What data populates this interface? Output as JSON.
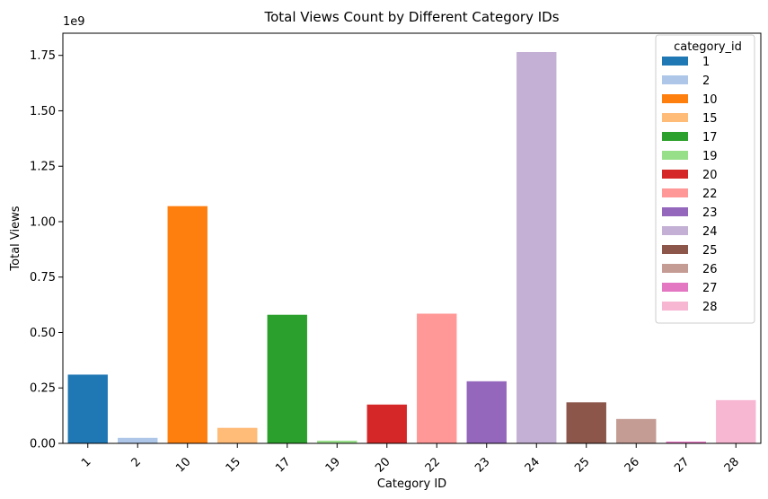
{
  "chart_data": {
    "type": "bar",
    "title": "Total Views Count by Different Category IDs",
    "xlabel": "Category ID",
    "ylabel": "Total Views",
    "y_offset_label": "1e9",
    "ylim": [
      0,
      1.85
    ],
    "yticks": [
      0.0,
      0.25,
      0.5,
      0.75,
      1.0,
      1.25,
      1.5,
      1.75
    ],
    "ytick_labels": [
      "0.00",
      "0.25",
      "0.50",
      "0.75",
      "1.00",
      "1.25",
      "1.50",
      "1.75"
    ],
    "categories": [
      "1",
      "2",
      "10",
      "15",
      "17",
      "19",
      "20",
      "22",
      "23",
      "24",
      "25",
      "26",
      "27",
      "28"
    ],
    "values": [
      0.31,
      0.025,
      1.07,
      0.07,
      0.58,
      0.012,
      0.175,
      0.585,
      0.28,
      1.765,
      0.185,
      0.11,
      0.008,
      0.195
    ],
    "colors": [
      "#1f77b4",
      "#aec7e8",
      "#ff7f0e",
      "#ffbb78",
      "#2ca02c",
      "#98df8a",
      "#d62728",
      "#ff9896",
      "#9467bd",
      "#c5b0d5",
      "#8c564b",
      "#c49c94",
      "#e377c2",
      "#f7b6d2"
    ],
    "grid": false,
    "legend": {
      "title": "category_id",
      "placement": "top-right",
      "entries": [
        "1",
        "2",
        "10",
        "15",
        "17",
        "19",
        "20",
        "22",
        "23",
        "24",
        "25",
        "26",
        "27",
        "28"
      ]
    }
  }
}
